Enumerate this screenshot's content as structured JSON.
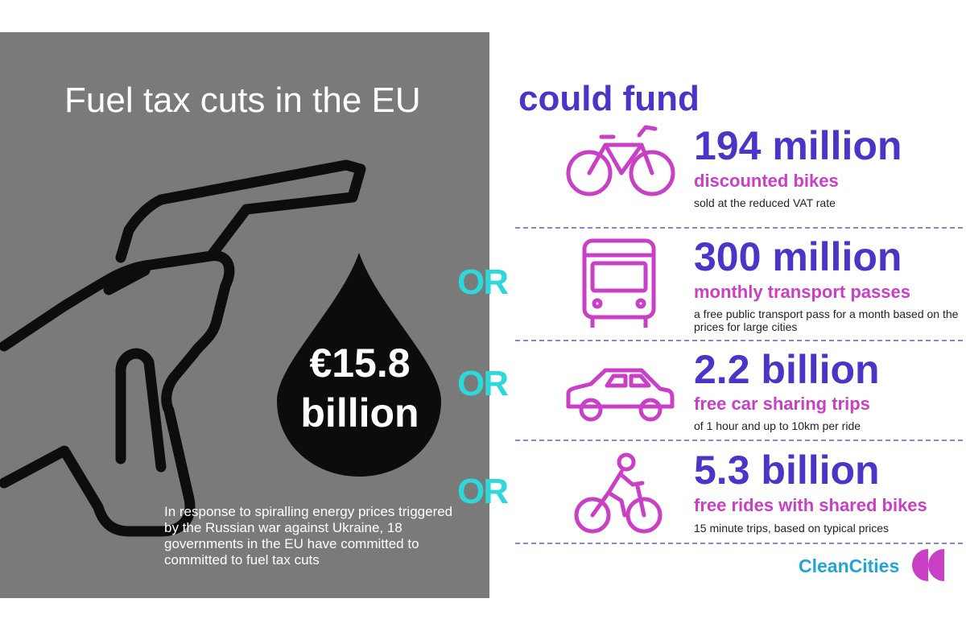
{
  "headline": "Fuel tax cuts in the EU",
  "amount_line1": "€15.8",
  "amount_line2": "billion",
  "caption": "In response to spiralling energy prices triggered by the Russian war against Ukraine, 18 governments in the EU have committed to committed to fuel tax cuts",
  "could_fund": "could fund",
  "or_label": "OR",
  "options": [
    {
      "icon": "bicycle-icon",
      "amount": "194 million",
      "label": "discounted bikes",
      "detail": "sold at the reduced VAT rate"
    },
    {
      "icon": "bus-icon",
      "amount": "300 million",
      "label": "monthly transport passes",
      "detail": "a free public transport pass for a month based on the prices for large cities"
    },
    {
      "icon": "car-icon",
      "amount": "2.2 billion",
      "label": "free car sharing trips",
      "detail": "of 1 hour and up to 10km per ride"
    },
    {
      "icon": "cyclist-icon",
      "amount": "5.3 billion",
      "label": "free rides with shared bikes",
      "detail": "15 minute trips, based on typical prices"
    }
  ],
  "brand": "CleanCities",
  "colors": {
    "panel": "#7a7a7a",
    "purple": "#4b35c9",
    "magenta": "#c93fc5",
    "teal": "#2fd8d8",
    "brand_blue": "#1fa5d6"
  }
}
